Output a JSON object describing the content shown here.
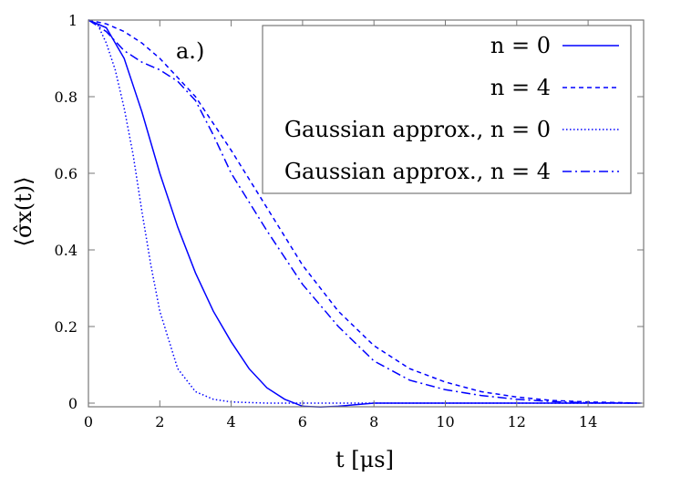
{
  "chart_data": {
    "type": "line",
    "annotation": "a.)",
    "xlabel": "t [μs]",
    "ylabel": "⟨σ̂x(t)⟩",
    "xlim": [
      0,
      15.6
    ],
    "ylim": [
      -0.01,
      1
    ],
    "xticks": [
      0,
      2,
      4,
      6,
      8,
      10,
      12,
      14
    ],
    "yticks": [
      0,
      0.2,
      0.4,
      0.6,
      0.8,
      1
    ],
    "ytick_labels": [
      "0",
      "0.2",
      "0.4",
      "0.6",
      "0.8",
      "1"
    ],
    "grid": false,
    "legend_placement": "top-right",
    "color": "#0000ff",
    "series": [
      {
        "name": "n = 0",
        "style": "solid",
        "x": [
          0,
          0.5,
          1,
          1.5,
          2,
          2.5,
          3,
          3.5,
          4,
          4.5,
          5,
          5.5,
          6,
          6.5,
          7,
          8,
          9,
          10,
          12,
          14,
          15.5
        ],
        "y": [
          1,
          0.98,
          0.9,
          0.76,
          0.6,
          0.46,
          0.34,
          0.24,
          0.16,
          0.09,
          0.04,
          0.01,
          -0.008,
          -0.01,
          -0.008,
          0,
          0,
          0,
          0,
          0,
          0
        ]
      },
      {
        "name": "n = 4",
        "style": "dashed",
        "x": [
          0,
          0.5,
          1,
          1.5,
          2,
          2.5,
          3,
          4,
          5,
          6,
          7,
          8,
          9,
          10,
          11,
          12,
          13,
          14,
          15.5
        ],
        "y": [
          1,
          0.99,
          0.97,
          0.94,
          0.9,
          0.85,
          0.8,
          0.66,
          0.51,
          0.36,
          0.24,
          0.15,
          0.09,
          0.055,
          0.03,
          0.016,
          0.007,
          0.003,
          0
        ]
      },
      {
        "name": "Gaussian approx., n = 0",
        "style": "dotted",
        "x": [
          0,
          0.25,
          0.5,
          0.75,
          1,
          1.25,
          1.5,
          1.75,
          2,
          2.5,
          3,
          3.5,
          4,
          5,
          6,
          8,
          10,
          12,
          14,
          15.5
        ],
        "y": [
          1,
          0.99,
          0.94,
          0.87,
          0.77,
          0.65,
          0.5,
          0.36,
          0.24,
          0.09,
          0.03,
          0.01,
          0.003,
          0,
          0,
          0,
          0,
          0,
          0,
          0
        ]
      },
      {
        "name": "Gaussian approx., n = 4",
        "style": "dashdot",
        "x": [
          0,
          0.5,
          1,
          1.5,
          2,
          2.5,
          3,
          3.5,
          4,
          5,
          6,
          7,
          8,
          9,
          10,
          11,
          12,
          13,
          14,
          15.5
        ],
        "y": [
          1,
          0.97,
          0.92,
          0.89,
          0.87,
          0.84,
          0.79,
          0.7,
          0.6,
          0.45,
          0.31,
          0.2,
          0.11,
          0.06,
          0.035,
          0.02,
          0.01,
          0.004,
          0.001,
          0
        ]
      }
    ]
  }
}
